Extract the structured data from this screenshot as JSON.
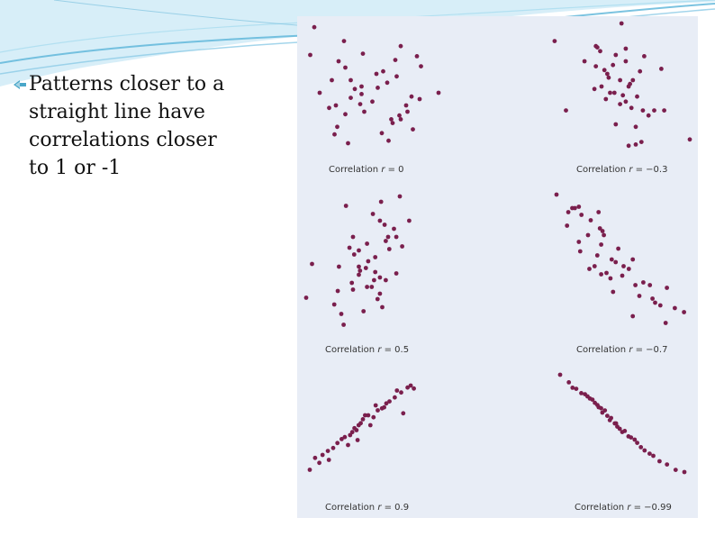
{
  "slide": {
    "bullet_lines": [
      "Patterns closer to a",
      "straight line have",
      "correlations closer",
      "to 1 or -1"
    ]
  },
  "theme": {
    "panel_bg": "#e8edf6",
    "point_color": "#7a1f4d",
    "wave_color": "#5ab4d8",
    "bullet_color": "#4aa7c9"
  },
  "chart_data": [
    {
      "type": "scatter",
      "title": "Correlation r = 0",
      "caption_prefix": "Correlation",
      "caption_r": "r",
      "caption_value": "= 0",
      "r": 0,
      "x": [
        0.06,
        0.28,
        0.03,
        0.7,
        0.42,
        0.66,
        0.82,
        0.85,
        0.57,
        0.24,
        0.29,
        0.67,
        0.6,
        0.33,
        0.19,
        0.41,
        0.36,
        0.53,
        0.1,
        0.41,
        0.33,
        0.78,
        0.84,
        0.98,
        0.49,
        0.4,
        0.22,
        0.74,
        0.75,
        0.69,
        0.17,
        0.43,
        0.29,
        0.63,
        0.7,
        0.64,
        0.23,
        0.79,
        0.56,
        0.21,
        0.31,
        0.61,
        0.52
      ],
      "y": [
        0.97,
        0.86,
        0.75,
        0.82,
        0.76,
        0.71,
        0.74,
        0.66,
        0.62,
        0.7,
        0.65,
        0.58,
        0.53,
        0.55,
        0.55,
        0.5,
        0.48,
        0.49,
        0.45,
        0.44,
        0.41,
        0.42,
        0.4,
        0.45,
        0.38,
        0.36,
        0.35,
        0.35,
        0.3,
        0.27,
        0.33,
        0.3,
        0.28,
        0.24,
        0.24,
        0.21,
        0.18,
        0.16,
        0.13,
        0.12,
        0.05,
        0.07,
        0.6
      ]
    },
    {
      "type": "scatter",
      "title": "Correlation r = −0.3",
      "caption_prefix": "Correlation",
      "caption_r": "r",
      "caption_value": "= −0.3",
      "r": -0.3,
      "x": [
        0.52,
        0.05,
        0.34,
        0.35,
        0.55,
        0.37,
        0.48,
        0.68,
        0.26,
        0.34,
        0.46,
        0.8,
        0.4,
        0.42,
        0.65,
        0.43,
        0.51,
        0.6,
        0.58,
        0.38,
        0.33,
        0.44,
        0.47,
        0.53,
        0.63,
        0.41,
        0.55,
        0.13,
        0.51,
        0.67,
        0.59,
        0.75,
        0.82,
        0.71,
        0.48,
        0.62,
        0.66,
        1.0,
        0.57,
        0.62,
        0.55,
        0.57
      ],
      "y": [
        1.0,
        0.86,
        0.82,
        0.81,
        0.8,
        0.78,
        0.75,
        0.74,
        0.7,
        0.66,
        0.67,
        0.64,
        0.63,
        0.6,
        0.62,
        0.57,
        0.55,
        0.55,
        0.52,
        0.5,
        0.48,
        0.45,
        0.45,
        0.43,
        0.42,
        0.4,
        0.38,
        0.31,
        0.36,
        0.31,
        0.33,
        0.31,
        0.31,
        0.27,
        0.2,
        0.18,
        0.06,
        0.08,
        0.03,
        0.04,
        0.7,
        0.5
      ]
    },
    {
      "type": "scatter",
      "title": "Correlation r = 0.5",
      "caption_prefix": "Correlation",
      "caption_r": "r",
      "caption_value": "= 0.5",
      "r": 0.5,
      "x": [
        0.8,
        0.34,
        0.64,
        0.57,
        0.63,
        0.88,
        0.67,
        0.75,
        0.77,
        0.7,
        0.68,
        0.52,
        0.82,
        0.37,
        0.45,
        0.41,
        0.59,
        0.53,
        0.05,
        0.28,
        0.51,
        0.45,
        0.46,
        0.59,
        0.77,
        0.45,
        0.63,
        0.58,
        0.68,
        0.39,
        0.56,
        0.52,
        0.4,
        0.27,
        0.63,
        0.0,
        0.61,
        0.24,
        0.65,
        0.49,
        0.3,
        0.32,
        0.71,
        0.4
      ],
      "y": [
        1.0,
        0.93,
        0.96,
        0.87,
        0.82,
        0.82,
        0.79,
        0.76,
        0.7,
        0.7,
        0.67,
        0.65,
        0.63,
        0.62,
        0.6,
        0.57,
        0.55,
        0.52,
        0.5,
        0.48,
        0.47,
        0.48,
        0.45,
        0.44,
        0.43,
        0.42,
        0.4,
        0.38,
        0.38,
        0.36,
        0.33,
        0.33,
        0.31,
        0.3,
        0.28,
        0.25,
        0.24,
        0.2,
        0.18,
        0.15,
        0.13,
        0.05,
        0.61,
        0.7
      ]
    },
    {
      "type": "scatter",
      "title": "Correlation r = −0.7",
      "caption_prefix": "Correlation",
      "caption_r": "r",
      "caption_value": "= −0.7",
      "r": -0.7,
      "x": [
        0.0,
        0.17,
        0.14,
        0.12,
        0.09,
        0.32,
        0.19,
        0.26,
        0.08,
        0.33,
        0.35,
        0.24,
        0.36,
        0.17,
        0.34,
        0.47,
        0.18,
        0.31,
        0.42,
        0.58,
        0.45,
        0.29,
        0.51,
        0.55,
        0.25,
        0.38,
        0.34,
        0.5,
        0.41,
        0.66,
        0.6,
        0.71,
        0.84,
        0.43,
        0.63,
        0.73,
        0.75,
        0.79,
        0.9,
        0.97,
        0.58,
        0.83
      ],
      "y": [
        1.0,
        0.91,
        0.9,
        0.9,
        0.87,
        0.87,
        0.85,
        0.81,
        0.77,
        0.75,
        0.73,
        0.7,
        0.7,
        0.65,
        0.63,
        0.6,
        0.58,
        0.55,
        0.52,
        0.52,
        0.5,
        0.47,
        0.47,
        0.45,
        0.45,
        0.42,
        0.41,
        0.4,
        0.38,
        0.35,
        0.33,
        0.33,
        0.31,
        0.28,
        0.25,
        0.23,
        0.2,
        0.18,
        0.16,
        0.13,
        0.1,
        0.05
      ],
      "note": ""
    },
    {
      "type": "scatter",
      "title": "Correlation r = 0.9",
      "caption_prefix": "Correlation",
      "caption_r": "r",
      "caption_value": "= 0.9",
      "r": 0.9,
      "x": [
        0.95,
        0.92,
        0.98,
        0.82,
        0.86,
        0.8,
        0.75,
        0.72,
        0.62,
        0.68,
        0.64,
        0.88,
        0.55,
        0.5,
        0.48,
        0.57,
        0.42,
        0.44,
        0.38,
        0.33,
        0.3,
        0.26,
        0.36,
        0.22,
        0.17,
        0.12,
        0.05,
        0.18,
        0.09,
        0.0,
        0.46,
        0.4,
        0.52,
        0.6,
        0.7,
        0.45
      ],
      "y": [
        1.0,
        0.98,
        0.97,
        0.95,
        0.93,
        0.88,
        0.84,
        0.82,
        0.8,
        0.77,
        0.75,
        0.72,
        0.7,
        0.66,
        0.62,
        0.6,
        0.57,
        0.55,
        0.5,
        0.48,
        0.46,
        0.42,
        0.4,
        0.37,
        0.34,
        0.3,
        0.27,
        0.25,
        0.22,
        0.15,
        0.6,
        0.53,
        0.7,
        0.68,
        0.78,
        0.45
      ]
    },
    {
      "type": "scatter",
      "title": "Correlation r = −0.99",
      "caption_prefix": "Correlation",
      "caption_r": "r",
      "caption_value": "= −0.99",
      "r": -0.99,
      "x": [
        0.0,
        0.07,
        0.1,
        0.13,
        0.17,
        0.2,
        0.22,
        0.24,
        0.26,
        0.28,
        0.3,
        0.31,
        0.33,
        0.36,
        0.38,
        0.4,
        0.41,
        0.44,
        0.46,
        0.48,
        0.5,
        0.52,
        0.55,
        0.57,
        0.6,
        0.62,
        0.65,
        0.68,
        0.72,
        0.75,
        0.8,
        0.86,
        0.93,
        1.0,
        0.34,
        0.45
      ],
      "y": [
        1.0,
        0.93,
        0.88,
        0.87,
        0.83,
        0.82,
        0.8,
        0.78,
        0.77,
        0.74,
        0.72,
        0.7,
        0.69,
        0.67,
        0.62,
        0.58,
        0.6,
        0.55,
        0.52,
        0.5,
        0.47,
        0.48,
        0.43,
        0.42,
        0.4,
        0.37,
        0.33,
        0.3,
        0.27,
        0.25,
        0.2,
        0.17,
        0.12,
        0.1,
        0.65,
        0.55
      ]
    }
  ]
}
